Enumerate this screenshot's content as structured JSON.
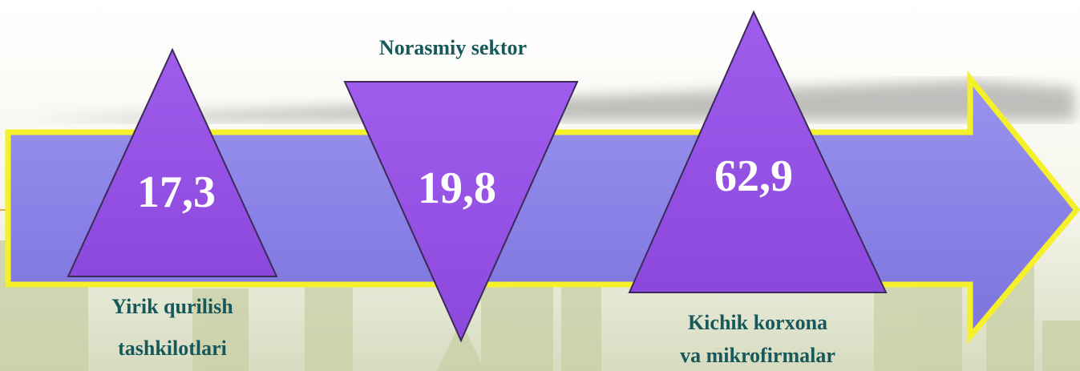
{
  "items": [
    {
      "value": "17,3",
      "label": [
        "Yirik qurilish",
        "tashkilotlari"
      ]
    },
    {
      "value": "19,8",
      "label": [
        "Norasmiy sektor"
      ]
    },
    {
      "value": "62,9",
      "label": [
        "Kichik korxona",
        "va mikrofirmalar"
      ]
    }
  ]
}
